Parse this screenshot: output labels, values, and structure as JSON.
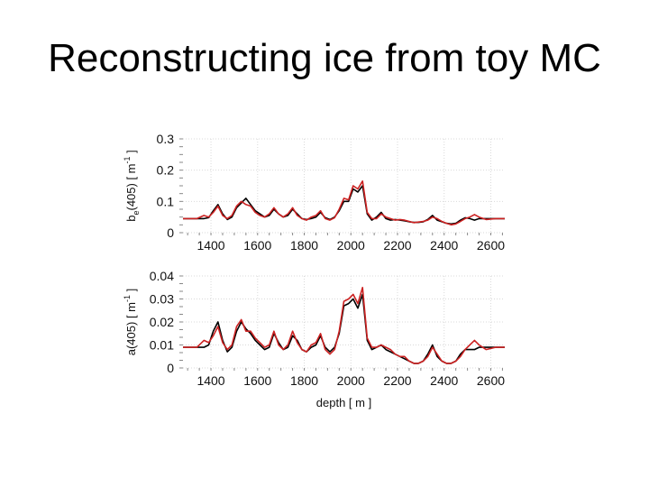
{
  "slide": {
    "title": "Reconstructing ice from toy MC"
  },
  "chart_data": [
    {
      "type": "line",
      "ylabel": "b_e(405) [ m^-1 ]",
      "ylabel_parts": {
        "pre": "b",
        "sub": "e",
        "mid": "(405)  [ m",
        "sup": "-1",
        "post": " ]"
      },
      "xlabel": "",
      "xlim": [
        1280,
        2660
      ],
      "ylim": [
        0,
        0.3
      ],
      "xticks": [
        1400,
        1600,
        1800,
        2000,
        2200,
        2400,
        2600
      ],
      "yticks": [
        0,
        0.1,
        0.2,
        0.3
      ],
      "ytick_labels": [
        "0",
        "0.1",
        "0.2",
        "0.3"
      ],
      "grid": true,
      "series": [
        {
          "color": "#000000",
          "x": [
            1280,
            1340,
            1370,
            1390,
            1410,
            1430,
            1450,
            1470,
            1490,
            1510,
            1530,
            1550,
            1570,
            1590,
            1610,
            1630,
            1650,
            1670,
            1690,
            1710,
            1730,
            1750,
            1770,
            1790,
            1810,
            1830,
            1850,
            1870,
            1890,
            1910,
            1930,
            1950,
            1970,
            1990,
            2010,
            2030,
            2050,
            2070,
            2090,
            2110,
            2130,
            2150,
            2170,
            2190,
            2210,
            2230,
            2250,
            2270,
            2290,
            2310,
            2330,
            2350,
            2370,
            2390,
            2410,
            2430,
            2450,
            2470,
            2490,
            2510,
            2530,
            2550,
            2580,
            2620,
            2660
          ],
          "y": [
            0.045,
            0.045,
            0.045,
            0.048,
            0.07,
            0.09,
            0.06,
            0.042,
            0.05,
            0.08,
            0.095,
            0.11,
            0.09,
            0.07,
            0.06,
            0.05,
            0.055,
            0.075,
            0.06,
            0.05,
            0.055,
            0.075,
            0.06,
            0.045,
            0.042,
            0.045,
            0.05,
            0.065,
            0.048,
            0.042,
            0.05,
            0.07,
            0.1,
            0.1,
            0.14,
            0.13,
            0.15,
            0.06,
            0.04,
            0.05,
            0.065,
            0.045,
            0.04,
            0.042,
            0.04,
            0.038,
            0.035,
            0.033,
            0.033,
            0.035,
            0.042,
            0.055,
            0.04,
            0.035,
            0.03,
            0.028,
            0.03,
            0.04,
            0.048,
            0.045,
            0.04,
            0.045,
            0.045,
            0.045,
            0.045
          ]
        },
        {
          "color": "#cc2222",
          "x": [
            1280,
            1340,
            1370,
            1390,
            1410,
            1430,
            1450,
            1470,
            1490,
            1510,
            1530,
            1550,
            1570,
            1590,
            1610,
            1630,
            1650,
            1670,
            1690,
            1710,
            1730,
            1750,
            1770,
            1790,
            1810,
            1830,
            1850,
            1870,
            1890,
            1910,
            1930,
            1950,
            1970,
            1990,
            2010,
            2030,
            2050,
            2070,
            2090,
            2110,
            2130,
            2150,
            2170,
            2190,
            2210,
            2230,
            2250,
            2270,
            2290,
            2310,
            2330,
            2350,
            2370,
            2390,
            2410,
            2430,
            2450,
            2470,
            2490,
            2510,
            2530,
            2550,
            2580,
            2620,
            2660
          ],
          "y": [
            0.045,
            0.045,
            0.055,
            0.05,
            0.065,
            0.085,
            0.055,
            0.045,
            0.055,
            0.085,
            0.1,
            0.09,
            0.085,
            0.065,
            0.055,
            0.05,
            0.06,
            0.08,
            0.06,
            0.05,
            0.06,
            0.08,
            0.055,
            0.045,
            0.04,
            0.05,
            0.055,
            0.07,
            0.045,
            0.04,
            0.048,
            0.075,
            0.11,
            0.105,
            0.15,
            0.14,
            0.165,
            0.065,
            0.045,
            0.045,
            0.06,
            0.05,
            0.045,
            0.04,
            0.042,
            0.04,
            0.036,
            0.032,
            0.034,
            0.036,
            0.04,
            0.05,
            0.045,
            0.036,
            0.03,
            0.025,
            0.028,
            0.036,
            0.045,
            0.05,
            0.058,
            0.05,
            0.042,
            0.045,
            0.045
          ]
        }
      ]
    },
    {
      "type": "line",
      "ylabel": "a(405) [ m^-1 ]",
      "ylabel_parts": {
        "pre": "a(405)  [ m",
        "sub": "",
        "mid": "",
        "sup": "-1",
        "post": " ]"
      },
      "xlabel": "depth [ m ]",
      "xlim": [
        1280,
        2660
      ],
      "ylim": [
        0,
        0.04
      ],
      "xticks": [
        1400,
        1600,
        1800,
        2000,
        2200,
        2400,
        2600
      ],
      "yticks": [
        0,
        0.01,
        0.02,
        0.03,
        0.04
      ],
      "ytick_labels": [
        "0",
        "0.01",
        "0.02",
        "0.03",
        "0.04"
      ],
      "grid": true,
      "series": [
        {
          "color": "#000000",
          "x": [
            1280,
            1340,
            1370,
            1390,
            1410,
            1430,
            1450,
            1470,
            1490,
            1510,
            1530,
            1550,
            1570,
            1590,
            1610,
            1630,
            1650,
            1670,
            1690,
            1710,
            1730,
            1750,
            1770,
            1790,
            1810,
            1830,
            1850,
            1870,
            1890,
            1910,
            1930,
            1950,
            1970,
            1990,
            2010,
            2030,
            2050,
            2070,
            2090,
            2110,
            2130,
            2150,
            2170,
            2190,
            2210,
            2230,
            2250,
            2270,
            2290,
            2310,
            2330,
            2350,
            2370,
            2390,
            2410,
            2430,
            2450,
            2470,
            2490,
            2510,
            2530,
            2550,
            2580,
            2620,
            2660
          ],
          "y": [
            0.009,
            0.009,
            0.009,
            0.01,
            0.016,
            0.02,
            0.012,
            0.007,
            0.009,
            0.016,
            0.02,
            0.017,
            0.015,
            0.012,
            0.01,
            0.008,
            0.009,
            0.015,
            0.011,
            0.008,
            0.009,
            0.014,
            0.012,
            0.008,
            0.007,
            0.009,
            0.01,
            0.014,
            0.009,
            0.007,
            0.009,
            0.015,
            0.027,
            0.028,
            0.03,
            0.026,
            0.032,
            0.012,
            0.008,
            0.009,
            0.01,
            0.008,
            0.007,
            0.006,
            0.005,
            0.004,
            0.003,
            0.002,
            0.002,
            0.003,
            0.006,
            0.01,
            0.005,
            0.003,
            0.002,
            0.002,
            0.003,
            0.006,
            0.008,
            0.008,
            0.008,
            0.009,
            0.009,
            0.009,
            0.009
          ]
        },
        {
          "color": "#cc2222",
          "x": [
            1280,
            1340,
            1370,
            1390,
            1410,
            1430,
            1450,
            1470,
            1490,
            1510,
            1530,
            1550,
            1570,
            1590,
            1610,
            1630,
            1650,
            1670,
            1690,
            1710,
            1730,
            1750,
            1770,
            1790,
            1810,
            1830,
            1850,
            1870,
            1890,
            1910,
            1930,
            1950,
            1970,
            1990,
            2010,
            2030,
            2050,
            2070,
            2090,
            2110,
            2130,
            2150,
            2170,
            2190,
            2210,
            2230,
            2250,
            2270,
            2290,
            2310,
            2330,
            2350,
            2370,
            2390,
            2410,
            2430,
            2450,
            2470,
            2490,
            2510,
            2530,
            2550,
            2580,
            2620,
            2660
          ],
          "y": [
            0.009,
            0.009,
            0.012,
            0.011,
            0.014,
            0.018,
            0.011,
            0.008,
            0.01,
            0.018,
            0.021,
            0.016,
            0.016,
            0.013,
            0.011,
            0.009,
            0.01,
            0.016,
            0.01,
            0.008,
            0.01,
            0.016,
            0.011,
            0.008,
            0.007,
            0.01,
            0.011,
            0.015,
            0.008,
            0.006,
            0.008,
            0.016,
            0.029,
            0.03,
            0.032,
            0.028,
            0.035,
            0.013,
            0.009,
            0.009,
            0.01,
            0.009,
            0.008,
            0.006,
            0.005,
            0.005,
            0.003,
            0.002,
            0.002,
            0.003,
            0.005,
            0.009,
            0.006,
            0.003,
            0.002,
            0.002,
            0.003,
            0.005,
            0.008,
            0.01,
            0.012,
            0.01,
            0.008,
            0.009,
            0.009
          ]
        }
      ]
    }
  ]
}
